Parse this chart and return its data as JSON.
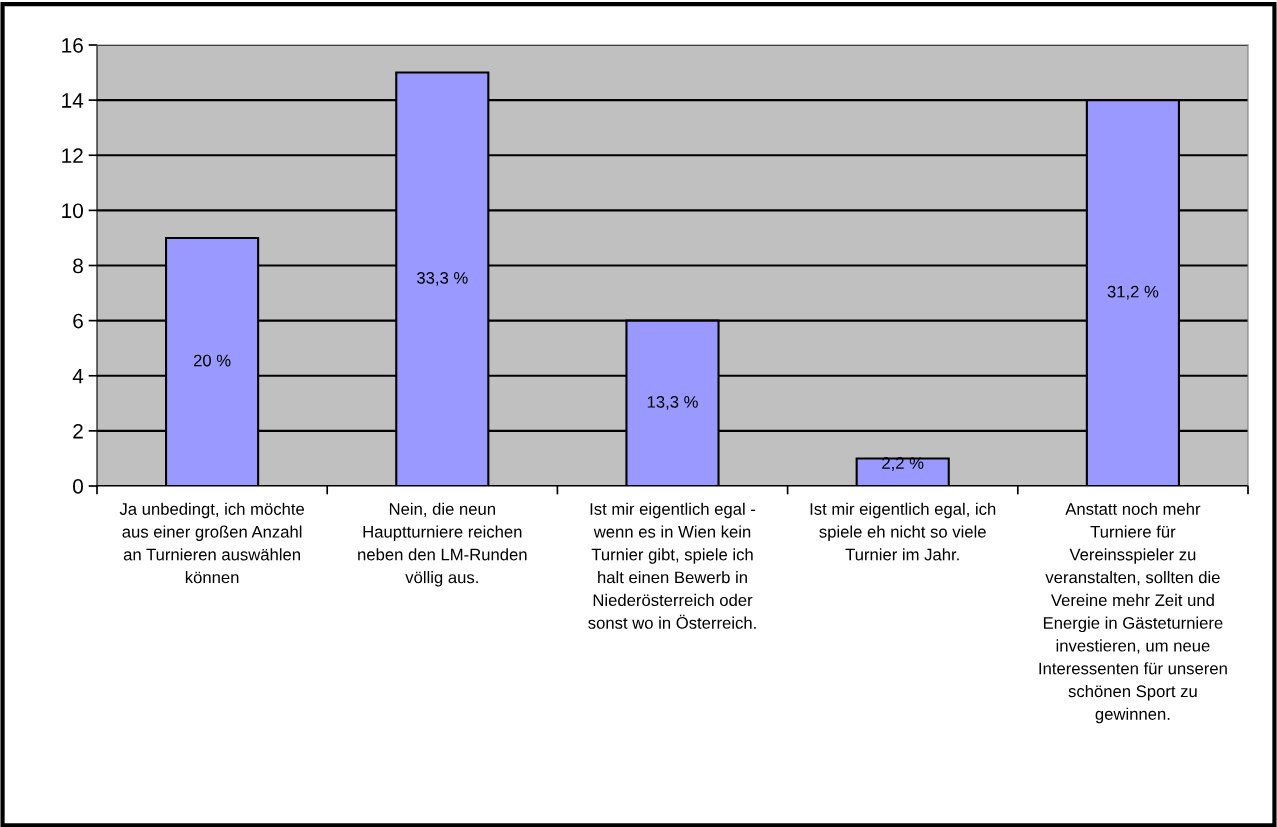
{
  "chart_data": {
    "type": "bar",
    "categories": [
      "Ja unbedingt, ich möchte\naus einer großen Anzahl\nan Turnieren auswählen\nkönnen",
      "Nein, die neun\nHauptturniere reichen\nneben den LM-Runden\nvöllig aus.",
      "Ist mir eigentlich egal -\nwenn es in Wien kein\nTurnier gibt, spiele ich\nhalt einen Bewerb in\nNiederösterreich oder\nsonst wo in Österreich.",
      "Ist mir eigentlich egal, ich\nspiele eh nicht so viele\nTurnier im Jahr.",
      "Anstatt noch mehr\nTurniere für\nVereinsspieler zu\nveranstalten, sollten die\nVereine mehr Zeit und\nEnergie in Gästeturniere\ninvestieren, um neue\nInteressenten für unseren\nschönen Sport zu\ngewinnen."
    ],
    "values": [
      9,
      15,
      6,
      1,
      14
    ],
    "annotations": [
      "20 %",
      "33,3 %",
      "13,3 %",
      "2,2 %",
      "31,2 %"
    ],
    "color": "#9999ff",
    "ylim": [
      0,
      16
    ],
    "yticks": [
      0,
      2,
      4,
      6,
      8,
      10,
      12,
      14,
      16
    ],
    "grid": "y",
    "legend": false
  }
}
